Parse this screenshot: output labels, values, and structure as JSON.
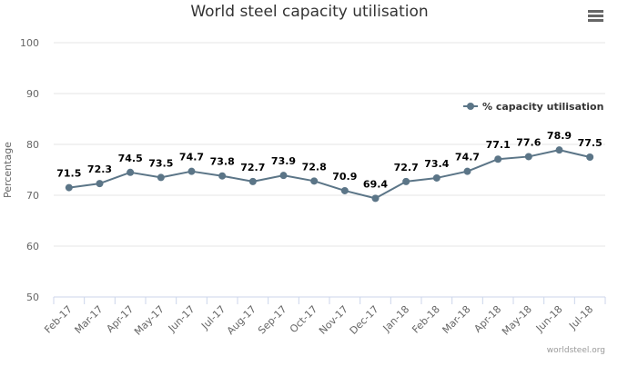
{
  "title": "World steel capacity utilisation",
  "credit": "worldsteel.org",
  "menu_icon": "hamburger-menu-icon",
  "colors": {
    "series": "#5b7587",
    "grid": "#e6e6e6",
    "axis": "#ccd6eb"
  },
  "chart_data": {
    "type": "line",
    "title": "World steel capacity utilisation",
    "xlabel": "",
    "ylabel": "Percentage",
    "ylim": [
      50,
      100
    ],
    "yticks": [
      50,
      60,
      70,
      80,
      90,
      100
    ],
    "grid": true,
    "legend_position": "right",
    "categories": [
      "Feb-17",
      "Mar-17",
      "Apr-17",
      "May-17",
      "Jun-17",
      "Jul-17",
      "Aug-17",
      "Sep-17",
      "Oct-17",
      "Nov-17",
      "Dec-17",
      "Jan-18",
      "Feb-18",
      "Mar-18",
      "Apr-18",
      "May-18",
      "Jun-18",
      "Jul-18"
    ],
    "series": [
      {
        "name": "% capacity utilisation",
        "values": [
          71.5,
          72.3,
          74.5,
          73.5,
          74.7,
          73.8,
          72.7,
          73.9,
          72.8,
          70.9,
          69.4,
          72.7,
          73.4,
          74.7,
          77.1,
          77.6,
          78.9,
          77.5
        ]
      }
    ]
  }
}
